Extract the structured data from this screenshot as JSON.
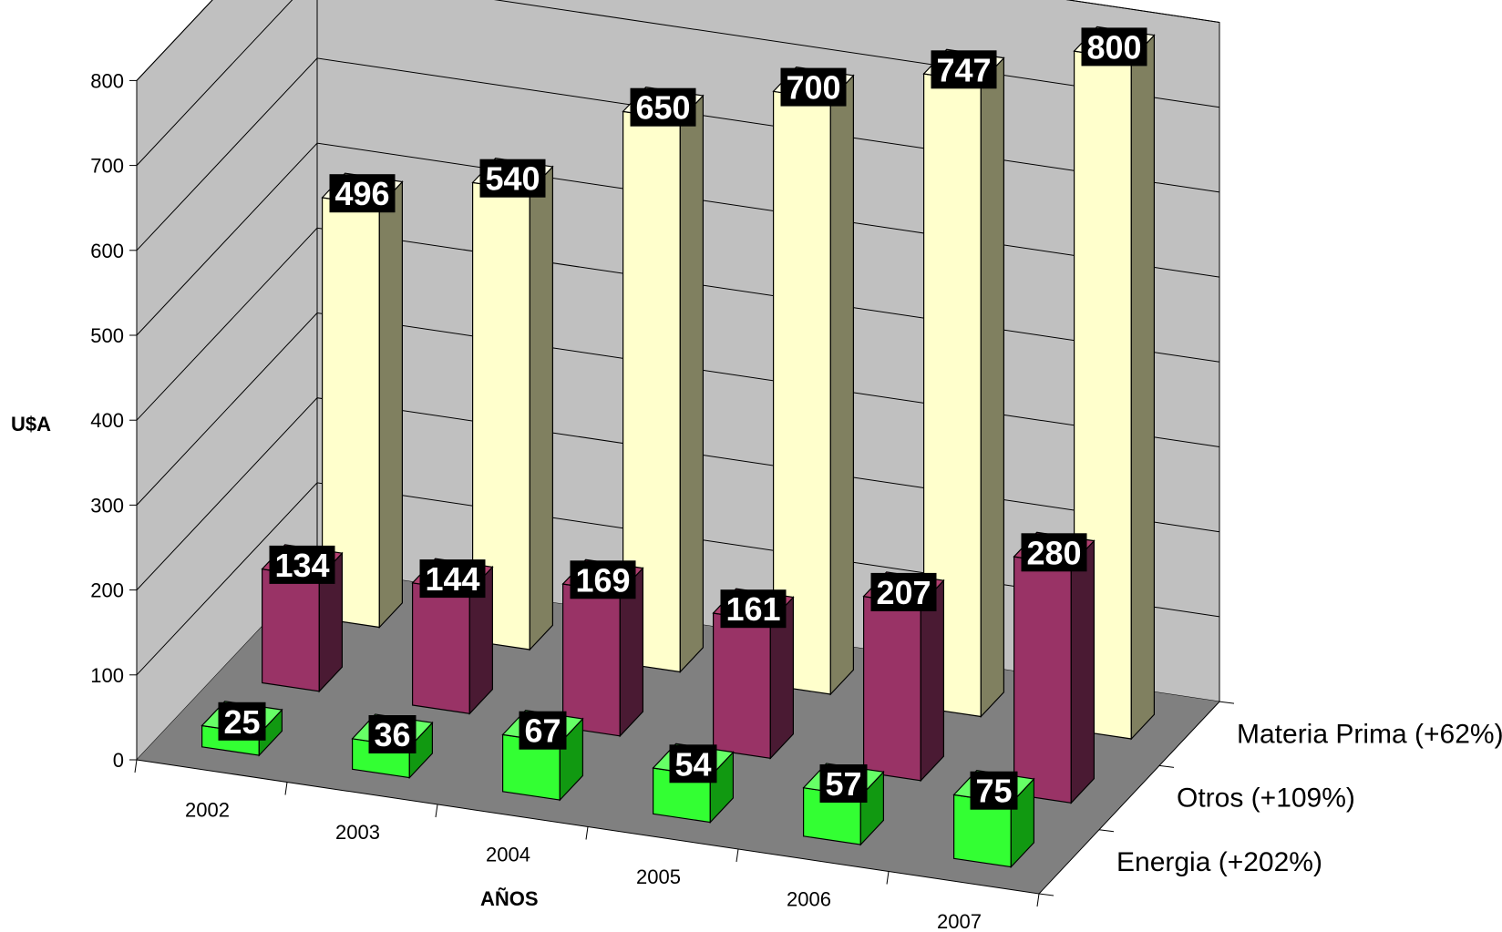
{
  "chart_data": {
    "type": "bar",
    "categories": [
      "2002",
      "2003",
      "2004",
      "2005",
      "2006",
      "2007"
    ],
    "series": [
      {
        "name": "Energia (+202%)",
        "values": [
          25,
          36,
          67,
          54,
          57,
          75
        ],
        "colors": {
          "front": "#33ff33",
          "top": "#66ff66",
          "side": "#119911"
        }
      },
      {
        "name": "Otros (+109%)",
        "values": [
          134,
          144,
          169,
          161,
          207,
          280
        ],
        "colors": {
          "front": "#993366",
          "top": "#b0406f",
          "side": "#4a1a33"
        }
      },
      {
        "name": "Materia Prima (+62%)",
        "values": [
          496,
          540,
          650,
          700,
          747,
          800
        ],
        "colors": {
          "front": "#ffffcc",
          "top": "#ffffe6",
          "side": "#808060"
        }
      }
    ],
    "ylim": [
      0,
      800
    ],
    "yticks": [
      "0",
      "100",
      "200",
      "300",
      "400",
      "500",
      "600",
      "700",
      "800"
    ],
    "ylabel": "U$A",
    "xlabel": "AÑOS",
    "grid": true,
    "style": "3d-column",
    "colors": {
      "back_wall": "#c0c0c0",
      "floor": "#808080",
      "grid": "#000000",
      "label_bg": "#000000",
      "label_text": "#ffffff"
    }
  }
}
